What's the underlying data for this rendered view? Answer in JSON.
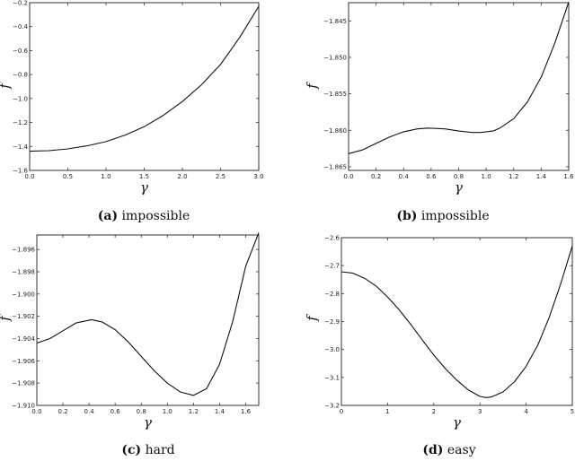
{
  "chart_data": [
    {
      "type": "line",
      "panel": "a",
      "caption_letter": "(a)",
      "caption_text": "impossible",
      "xlabel": "γ",
      "ylabel": "f",
      "xlim": [
        0.0,
        3.0
      ],
      "ylim": [
        -1.6,
        -0.2
      ],
      "xticks": [
        "0.0",
        "0.5",
        "1.0",
        "1.5",
        "2.0",
        "2.5",
        "3.0"
      ],
      "yticks": [
        "-1.6",
        "-1.4",
        "-1.2",
        "-1.0",
        "-0.8",
        "-0.6",
        "-0.4",
        "-0.2"
      ],
      "x": [
        0.0,
        0.25,
        0.5,
        0.75,
        1.0,
        1.25,
        1.5,
        1.75,
        2.0,
        2.25,
        2.5,
        2.75,
        3.0
      ],
      "y": [
        -1.44,
        -1.435,
        -1.42,
        -1.395,
        -1.36,
        -1.305,
        -1.235,
        -1.14,
        -1.025,
        -0.885,
        -0.715,
        -0.49,
        -0.23
      ],
      "grid": false
    },
    {
      "type": "line",
      "panel": "b",
      "caption_letter": "(b)",
      "caption_text": "impossible",
      "xlabel": "γ",
      "ylabel": "f",
      "xlim": [
        0.0,
        1.6
      ],
      "ylim": [
        -1.8655,
        -1.8425
      ],
      "xticks": [
        "0.0",
        "0.2",
        "0.4",
        "0.6",
        "0.8",
        "1.0",
        "1.2",
        "1.4",
        "1.6"
      ],
      "yticks": [
        "-1.865",
        "-1.860",
        "-1.855",
        "-1.850",
        "-1.845"
      ],
      "x": [
        0.0,
        0.1,
        0.2,
        0.3,
        0.4,
        0.5,
        0.58,
        0.7,
        0.8,
        0.9,
        0.96,
        1.05,
        1.1,
        1.2,
        1.3,
        1.4,
        1.5,
        1.6
      ],
      "y": [
        -1.8632,
        -1.8627,
        -1.8618,
        -1.8609,
        -1.8602,
        -1.8598,
        -1.8597,
        -1.8598,
        -1.8601,
        -1.8603,
        -1.8603,
        -1.8601,
        -1.8597,
        -1.8584,
        -1.8561,
        -1.8527,
        -1.848,
        -1.8424
      ],
      "grid": false
    },
    {
      "type": "line",
      "panel": "c",
      "caption_letter": "(c)",
      "caption_text": "hard",
      "xlabel": "γ",
      "ylabel": "f",
      "xlim": [
        0.0,
        1.7
      ],
      "ylim": [
        -1.91,
        -1.8947
      ],
      "xticks": [
        "0.0",
        "0.2",
        "0.4",
        "0.6",
        "0.8",
        "1.0",
        "1.2",
        "1.4",
        "1.6"
      ],
      "yticks": [
        "-1.910",
        "-1.908",
        "-1.906",
        "-1.904",
        "-1.902",
        "-1.900",
        "-1.898",
        "-1.896"
      ],
      "x": [
        0.0,
        0.1,
        0.2,
        0.3,
        0.42,
        0.5,
        0.6,
        0.7,
        0.8,
        0.9,
        1.0,
        1.1,
        1.2,
        1.3,
        1.4,
        1.5,
        1.6,
        1.7
      ],
      "y": [
        -1.9044,
        -1.904,
        -1.9033,
        -1.9026,
        -1.9023,
        -1.9025,
        -1.9032,
        -1.9043,
        -1.9056,
        -1.9069,
        -1.908,
        -1.9088,
        -1.9091,
        -1.9085,
        -1.9063,
        -1.9025,
        -1.8975,
        -1.8945
      ],
      "grid": false
    },
    {
      "type": "line",
      "panel": "d",
      "caption_letter": "(d)",
      "caption_text": "easy",
      "xlabel": "γ",
      "ylabel": "f",
      "xlim": [
        0,
        5
      ],
      "ylim": [
        -3.2,
        -2.6
      ],
      "xticks": [
        "0",
        "1",
        "2",
        "3",
        "4",
        "5"
      ],
      "yticks": [
        "-3.2",
        "-3.1",
        "-3.0",
        "-2.9",
        "-2.8",
        "-2.7",
        "-2.6"
      ],
      "x": [
        0.0,
        0.25,
        0.5,
        0.75,
        1.0,
        1.25,
        1.5,
        1.75,
        2.0,
        2.25,
        2.5,
        2.75,
        3.0,
        3.14,
        3.25,
        3.5,
        3.75,
        4.0,
        4.25,
        4.5,
        4.75,
        5.0
      ],
      "y": [
        -2.722,
        -2.727,
        -2.745,
        -2.773,
        -2.812,
        -2.858,
        -2.91,
        -2.965,
        -3.02,
        -3.068,
        -3.11,
        -3.145,
        -3.168,
        -3.172,
        -3.17,
        -3.152,
        -3.115,
        -3.06,
        -2.985,
        -2.885,
        -2.765,
        -2.63
      ],
      "grid": false
    }
  ]
}
